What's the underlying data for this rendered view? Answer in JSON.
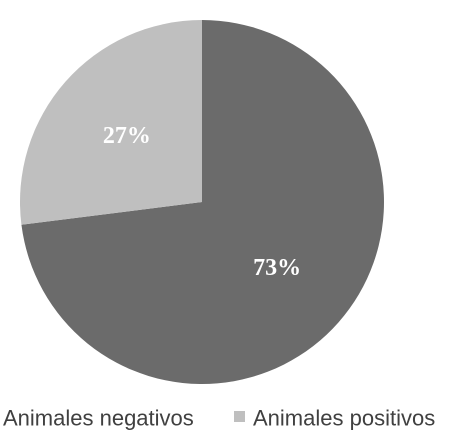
{
  "chart_data": {
    "type": "pie",
    "title": "",
    "slices": [
      {
        "label": "Animales negativos",
        "value": 73,
        "display": "73%",
        "color": "#6b6b6b"
      },
      {
        "label": "Animales positivos",
        "value": 27,
        "display": "27%",
        "color": "#bfbfbf"
      }
    ],
    "start_angle_deg": 0,
    "direction": "clockwise",
    "legend_position": "bottom"
  }
}
